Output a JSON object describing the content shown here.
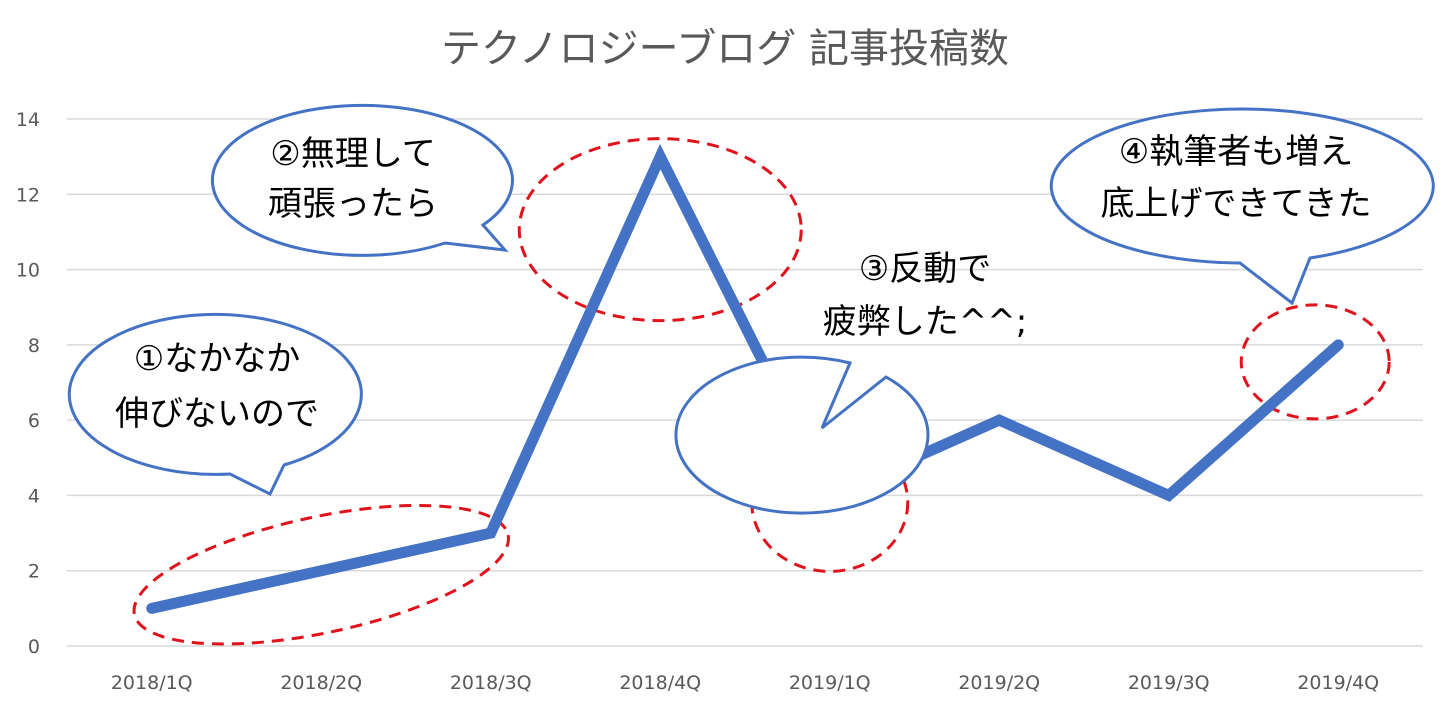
{
  "chart_data": {
    "type": "line",
    "title": "テクノロジーブログ 記事投稿数",
    "categories": [
      "2018/1Q",
      "2018/2Q",
      "2018/3Q",
      "2018/4Q",
      "2019/1Q",
      "2019/2Q",
      "2019/3Q",
      "2019/4Q"
    ],
    "series": [
      {
        "values": [
          1,
          2,
          3,
          13,
          4,
          6,
          4,
          8
        ],
        "color": "#4472c4"
      }
    ],
    "ylim": [
      0,
      14
    ],
    "yticks": [
      "0",
      "2",
      "4",
      "6",
      "8",
      "10",
      "12",
      "14"
    ],
    "grid": true,
    "xlabel": "",
    "ylabel": "",
    "annotations": [
      {
        "lines": [
          "①なかなか",
          "伸びないので"
        ]
      },
      {
        "lines": [
          "②無理して",
          "頑張ったら"
        ]
      },
      {
        "lines": [
          "③反動で",
          "疲弊した^^;"
        ]
      },
      {
        "lines": [
          "④執筆者も増え",
          "底上げできてきた"
        ]
      }
    ],
    "highlight_color": "#e0121b"
  }
}
